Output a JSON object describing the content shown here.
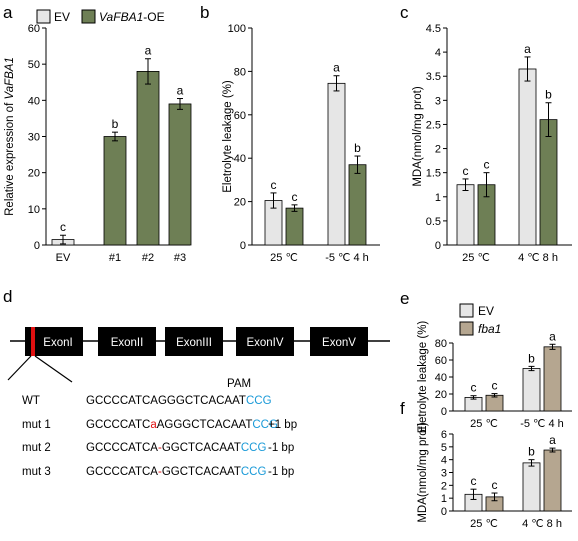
{
  "colors": {
    "ev": "#e6e6e6",
    "oe": "#6e7f55",
    "mutant": "#b5a690",
    "axis": "#000000",
    "exon": "#000000",
    "target": "#e01010",
    "pam": "#1a9ad8",
    "insert": "#e01010"
  },
  "panels": {
    "a": "a",
    "b": "b",
    "c": "c",
    "d": "d",
    "e": "e",
    "f": "f"
  },
  "legend_top": {
    "ev": "EV",
    "oe_italic": "VaFBA1",
    "oe_suffix": "-OE"
  },
  "legend_bottom": {
    "ev": "EV",
    "mutant": "fba1"
  },
  "chart_data": [
    {
      "id": "a",
      "type": "bar",
      "ylabel_prefix": "Relative expression of ",
      "ylabel_italic": "VaFBA1",
      "ylim": [
        0,
        60
      ],
      "yticks": [
        0,
        10,
        20,
        30,
        40,
        50,
        60
      ],
      "categories": [
        "EV",
        "#1",
        "#2",
        "#3"
      ],
      "values": [
        1.5,
        30,
        48,
        39
      ],
      "errors": [
        1.2,
        1.2,
        3.5,
        1.5
      ],
      "letters": [
        "c",
        "b",
        "a",
        "a"
      ],
      "colors": [
        "ev",
        "oe",
        "oe",
        "oe"
      ]
    },
    {
      "id": "b",
      "type": "bar",
      "ylabel": "Eletrolyte leakage (%)",
      "ylim": [
        0,
        100
      ],
      "yticks": [
        0,
        20,
        40,
        60,
        80,
        100
      ],
      "groups": [
        "25 ℃",
        "-5 ℃ 4 h"
      ],
      "series": [
        {
          "key": "ev",
          "values": [
            20.5,
            74.5
          ],
          "errors": [
            3.5,
            3.5
          ],
          "letters": [
            "c",
            "a"
          ]
        },
        {
          "key": "oe",
          "values": [
            17,
            37
          ],
          "errors": [
            1.5,
            4
          ],
          "letters": [
            "c",
            "b"
          ]
        }
      ]
    },
    {
      "id": "c",
      "type": "bar",
      "ylabel": "MDA(nmol/mg prot)",
      "ylim": [
        0,
        4.5
      ],
      "yticks": [
        "0",
        "0.5",
        "1",
        "1.5",
        "2",
        "2.5",
        "3",
        "3.5",
        "4",
        "4.5"
      ],
      "groups": [
        "25 ℃",
        "4 ℃ 8 h"
      ],
      "series": [
        {
          "key": "ev",
          "values": [
            1.25,
            3.65
          ],
          "errors": [
            0.12,
            0.25
          ],
          "letters": [
            "c",
            "a"
          ]
        },
        {
          "key": "oe",
          "values": [
            1.25,
            2.6
          ],
          "errors": [
            0.25,
            0.35
          ],
          "letters": [
            "c",
            "b"
          ]
        }
      ]
    },
    {
      "id": "e",
      "type": "bar",
      "ylabel": "Eletrolyte leakage (%)",
      "ylim": [
        0,
        80
      ],
      "yticks": [
        0,
        20,
        40,
        60,
        80
      ],
      "groups": [
        "25 ℃",
        "-5 ℃ 4 h"
      ],
      "series": [
        {
          "key": "ev",
          "values": [
            16,
            50
          ],
          "errors": [
            2,
            2.5
          ],
          "letters": [
            "c",
            "b"
          ]
        },
        {
          "key": "mutant",
          "values": [
            18.5,
            75.5
          ],
          "errors": [
            2,
            3
          ],
          "letters": [
            "c",
            "a"
          ]
        }
      ]
    },
    {
      "id": "f",
      "type": "bar",
      "ylabel": "MDA(nmol/mg prot)",
      "ylim": [
        0,
        6
      ],
      "yticks": [
        0,
        1,
        2,
        3,
        4,
        5,
        6
      ],
      "groups": [
        "25 ℃",
        "4 ℃ 8 h"
      ],
      "series": [
        {
          "key": "ev",
          "values": [
            1.3,
            3.75
          ],
          "errors": [
            0.4,
            0.25
          ],
          "letters": [
            "c",
            "b"
          ]
        },
        {
          "key": "mutant",
          "values": [
            1.1,
            4.75
          ],
          "errors": [
            0.3,
            0.15
          ],
          "letters": [
            "c",
            "a"
          ]
        }
      ]
    }
  ],
  "gene": {
    "exons": [
      "ExonI",
      "ExonII",
      "ExonIII",
      "ExonIV",
      "ExonV"
    ],
    "pam_label": "PAM",
    "rows": [
      {
        "label": "WT",
        "seq": "GCCCCATCAGGGCTCACAAT",
        "pam": "CCG",
        "note": ""
      },
      {
        "label": "mut 1",
        "pre": "GCCCCATC",
        "edit": "a",
        "post": "AGGGCTCACAAT",
        "pam": "CCG",
        "note": "+1 bp"
      },
      {
        "label": "mut 2",
        "pre": "GCCCCATCA",
        "edit": "-",
        "post": "GGCTCACAAT",
        "pam": "CCG",
        "note": "-1 bp"
      },
      {
        "label": "mut 3",
        "pre": "GCCCCATCA",
        "edit": "-",
        "post": "GGCTCACAAT",
        "pam": "CCG",
        "note": "-1 bp"
      }
    ]
  }
}
